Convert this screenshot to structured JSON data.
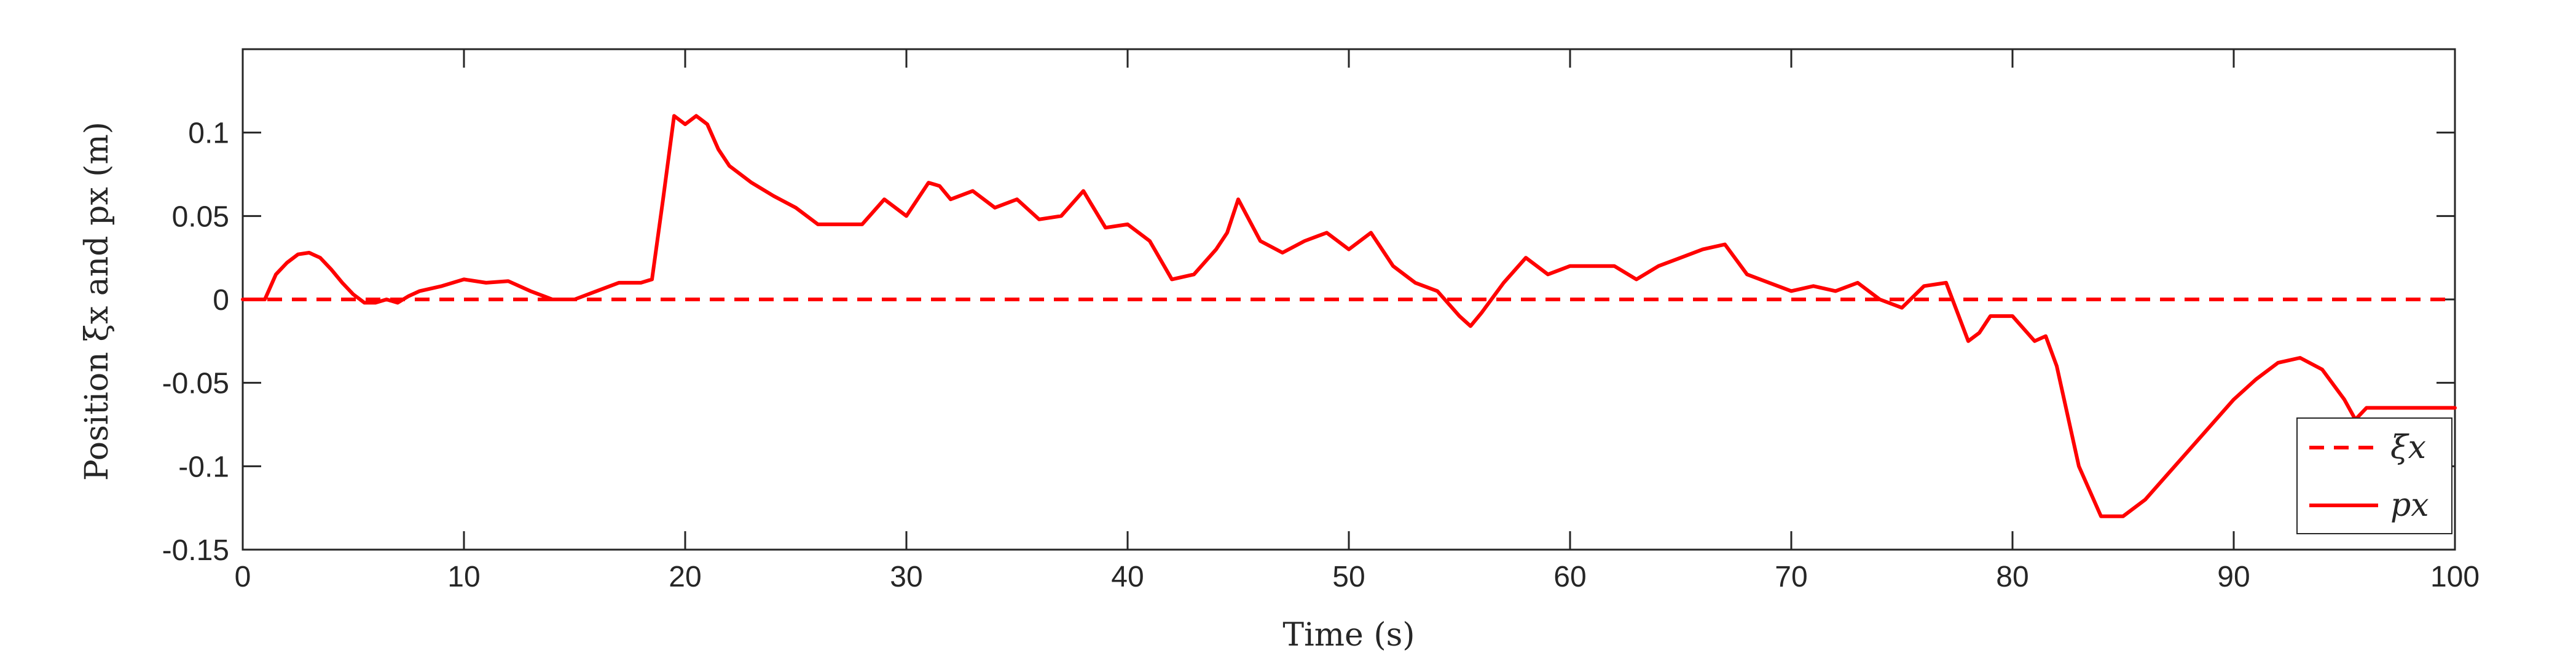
{
  "chart_data": {
    "type": "line",
    "xlabel": "Time (s)",
    "ylabel": "Position ξx and px (m)",
    "xlim": [
      0,
      100
    ],
    "ylim": [
      -0.15,
      0.15
    ],
    "x_ticks": [
      0,
      10,
      20,
      30,
      40,
      50,
      60,
      70,
      80,
      90,
      100
    ],
    "x_tick_labels": [
      "0",
      "10",
      "20",
      "30",
      "40",
      "50",
      "60",
      "70",
      "80",
      "90",
      "100"
    ],
    "y_ticks": [
      -0.15,
      -0.1,
      -0.05,
      0,
      0.05,
      0.1
    ],
    "y_tick_labels": [
      "-0.15",
      "-0.1",
      "-0.05",
      "0",
      "0.05",
      "0.1"
    ],
    "grid": false,
    "legend_position": "bottom-right",
    "colors": {
      "series": "#ff0000",
      "axes": "#262626"
    },
    "series": [
      {
        "name": "ξx",
        "style": "dashed",
        "x": [
          0,
          100
        ],
        "y": [
          0,
          0
        ]
      },
      {
        "name": "px",
        "style": "solid",
        "x": [
          0,
          1,
          1.5,
          2,
          2.5,
          3,
          3.5,
          4,
          4.5,
          5,
          5.5,
          6,
          6.5,
          7,
          7.5,
          8,
          9,
          10,
          11,
          12,
          13,
          14,
          15,
          16,
          17,
          18,
          18.5,
          19,
          19.5,
          20,
          20.5,
          21,
          21.5,
          22,
          23,
          24,
          25,
          26,
          27,
          28,
          29,
          30,
          31,
          31.5,
          32,
          33,
          34,
          35,
          36,
          37,
          38,
          39,
          40,
          41,
          42,
          43,
          44,
          44.5,
          45,
          46,
          47,
          48,
          49,
          50,
          51,
          52,
          53,
          54,
          55,
          55.5,
          56,
          57,
          58,
          59,
          60,
          61,
          62,
          63,
          64,
          65,
          66,
          67,
          68,
          69,
          70,
          71,
          72,
          73,
          74,
          75,
          76,
          77,
          78,
          78.5,
          79,
          80,
          81,
          81.5,
          82,
          83,
          84,
          85,
          86,
          87,
          88,
          89,
          90,
          91,
          92,
          93,
          94,
          95,
          95.5,
          96,
          97,
          98,
          99,
          100
        ],
        "y": [
          0,
          0,
          0.015,
          0.022,
          0.027,
          0.028,
          0.025,
          0.018,
          0.01,
          0.003,
          -0.002,
          -0.002,
          0.0,
          -0.002,
          0.002,
          0.005,
          0.008,
          0.012,
          0.01,
          0.011,
          0.005,
          0.0,
          0.0,
          0.005,
          0.01,
          0.01,
          0.012,
          0.06,
          0.11,
          0.105,
          0.11,
          0.105,
          0.09,
          0.08,
          0.07,
          0.062,
          0.055,
          0.045,
          0.045,
          0.045,
          0.06,
          0.05,
          0.07,
          0.068,
          0.06,
          0.065,
          0.055,
          0.06,
          0.048,
          0.05,
          0.065,
          0.043,
          0.045,
          0.035,
          0.012,
          0.015,
          0.03,
          0.04,
          0.06,
          0.035,
          0.028,
          0.035,
          0.04,
          0.03,
          0.04,
          0.02,
          0.01,
          0.005,
          -0.01,
          -0.016,
          -0.008,
          0.01,
          0.025,
          0.015,
          0.02,
          0.02,
          0.02,
          0.012,
          0.02,
          0.025,
          0.03,
          0.033,
          0.015,
          0.01,
          0.005,
          0.008,
          0.005,
          0.01,
          0.0,
          -0.005,
          0.008,
          0.01,
          -0.025,
          -0.02,
          -0.01,
          -0.01,
          -0.025,
          -0.022,
          -0.04,
          -0.1,
          -0.13,
          -0.13,
          -0.12,
          -0.105,
          -0.09,
          -0.075,
          -0.06,
          -0.048,
          -0.038,
          -0.035,
          -0.042,
          -0.06,
          -0.072,
          -0.065,
          -0.065,
          -0.065,
          -0.065,
          -0.065
        ]
      }
    ]
  }
}
